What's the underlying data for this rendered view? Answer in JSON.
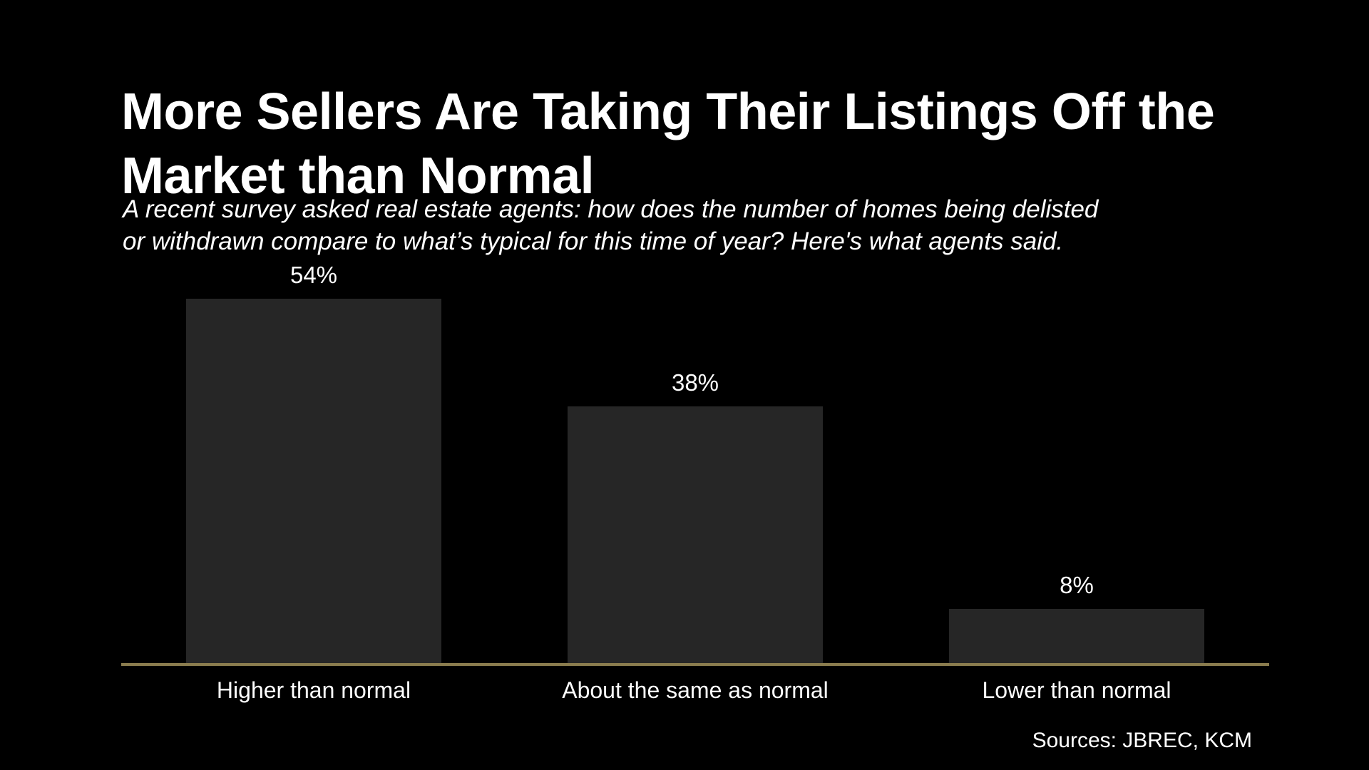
{
  "title_lines": [
    "More Sellers Are Taking Their Listings Off the",
    "Market than Normal"
  ],
  "subtitle_lines": [
    "A recent survey asked real estate agents: how does the number of homes being delisted",
    "or withdrawn compare to what’s typical for this time of year? Here's what agents said."
  ],
  "source_label": "Sources: JBREC, KCM",
  "colors": {
    "background": "#000000",
    "bar_fill": "#262626",
    "axis_line": "#8a7c4e",
    "text": "#ffffff"
  },
  "chart_data": {
    "type": "bar",
    "title": "More Sellers Are Taking Their Listings Off the Market than Normal",
    "subtitle": "A recent survey asked real estate agents: how does the number of homes being delisted or withdrawn compare to what’s typical for this time of year? Here's what agents said.",
    "categories": [
      "Higher than normal",
      "About the same as normal",
      "Lower than normal"
    ],
    "values": [
      54,
      38,
      8
    ],
    "value_labels": [
      "54%",
      "38%",
      "8%"
    ],
    "unit": "percent",
    "xlabel": "",
    "ylabel": "",
    "ylim": [
      0,
      57
    ],
    "grid": false,
    "legend": false,
    "bar_color": "#262626",
    "baseline_color": "#8a7c4e",
    "annotations": []
  }
}
